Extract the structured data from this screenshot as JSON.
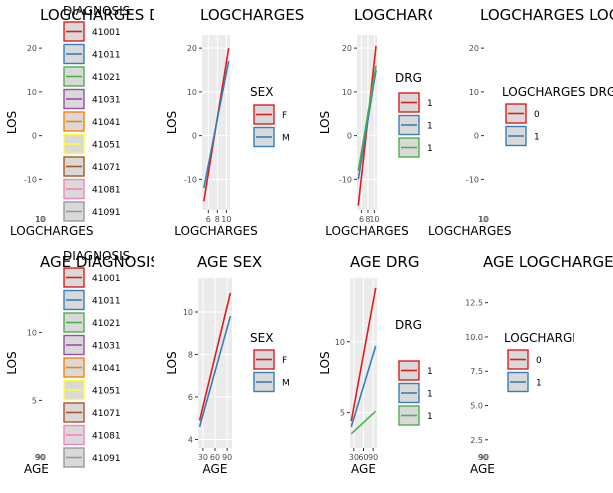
{
  "chart_data": [
    {
      "type": "line",
      "title": "LOGCHARGES DIAGNOSIS",
      "xlabel": "LOGCHARGES",
      "ylabel": "LOS",
      "xticks": [
        "10"
      ],
      "yticks": [
        -10,
        0,
        10,
        20
      ],
      "ylim": [
        -17,
        23
      ],
      "legend": {
        "title": "DIAGNOSIS",
        "entries": [
          "41001",
          "41011",
          "41021",
          "41031",
          "41041",
          "41051",
          "41071",
          "41081",
          "41091"
        ]
      },
      "series": []
    },
    {
      "type": "line",
      "title": "LOGCHARGES SEX",
      "xlabel": "LOGCHARGES",
      "ylabel": "LOS",
      "xticks": [
        "6",
        "8",
        "10"
      ],
      "yticks": [
        -10,
        0,
        10,
        20
      ],
      "ylim": [
        -17,
        23
      ],
      "xlim": [
        4.6,
        10.8
      ],
      "legend": {
        "title": "SEX",
        "entries": [
          "F",
          "M"
        ]
      },
      "series": [
        {
          "name": "F",
          "color": "#e41a1c",
          "points": [
            [
              5.0,
              -15
            ],
            [
              10.5,
              20
            ]
          ]
        },
        {
          "name": "M",
          "color": "#377eb8",
          "points": [
            [
              5.0,
              -12
            ],
            [
              10.5,
              17
            ]
          ]
        }
      ]
    },
    {
      "type": "line",
      "title": "LOGCHARGES DRG",
      "xlabel": "LOGCHARGES",
      "ylabel": "LOS",
      "xticks": [
        "6",
        "8",
        "10"
      ],
      "yticks": [
        -10,
        0,
        10,
        20
      ],
      "ylim": [
        -17,
        23
      ],
      "xlim": [
        4.6,
        10.8
      ],
      "legend": {
        "title": "DRG",
        "entries": [
          "1",
          "1",
          "1"
        ]
      },
      "series": [
        {
          "name": "1",
          "color": "#e41a1c",
          "points": [
            [
              5.0,
              -16
            ],
            [
              10.5,
              20.5
            ]
          ]
        },
        {
          "name": "1",
          "color": "#377eb8",
          "points": [
            [
              5.0,
              -10
            ],
            [
              10.5,
              15
            ]
          ]
        },
        {
          "name": "1",
          "color": "#4daf4a",
          "points": [
            [
              5.0,
              -8
            ],
            [
              10.5,
              16
            ]
          ]
        }
      ]
    },
    {
      "type": "line",
      "title": "LOGCHARGES LOGCHARGES DRG",
      "xlabel": "LOGCHARGES",
      "ylabel": "LOS",
      "xticks": [
        "10"
      ],
      "yticks": [
        -10,
        0,
        10,
        20
      ],
      "ylim": [
        -17,
        23
      ],
      "legend": {
        "title": "LOGCHARGES DRG",
        "entries": [
          "0",
          "1"
        ]
      },
      "series": []
    },
    {
      "type": "line",
      "title": "AGE DIAGNOSIS",
      "xlabel": "AGE",
      "ylabel": "LOS",
      "xticks": [
        "90"
      ],
      "yticks": [
        5,
        10
      ],
      "ylim": [
        1.5,
        14
      ],
      "legend": {
        "title": "DIAGNOSIS",
        "entries": [
          "41001",
          "41011",
          "41021",
          "41031",
          "41041",
          "41051",
          "41071",
          "41081",
          "41091"
        ]
      },
      "series": []
    },
    {
      "type": "line",
      "title": "AGE SEX",
      "xlabel": "AGE",
      "ylabel": "LOS",
      "xticks": [
        "30",
        "60",
        "90"
      ],
      "yticks": [
        4,
        6,
        8,
        10
      ],
      "ylim": [
        3.6,
        11.6
      ],
      "xlim": [
        18,
        102
      ],
      "legend": {
        "title": "SEX",
        "entries": [
          "F",
          "M"
        ]
      },
      "series": [
        {
          "name": "F",
          "color": "#e41a1c",
          "points": [
            [
              22,
              4.9
            ],
            [
              98,
              10.9
            ]
          ]
        },
        {
          "name": "M",
          "color": "#377eb8",
          "points": [
            [
              22,
              4.6
            ],
            [
              98,
              9.8
            ]
          ]
        }
      ]
    },
    {
      "type": "line",
      "title": "AGE DRG",
      "xlabel": "AGE",
      "ylabel": "LOS",
      "xticks": [
        "30",
        "60",
        "90"
      ],
      "yticks": [
        5,
        10
      ],
      "ylim": [
        2.5,
        14.5
      ],
      "xlim": [
        18,
        102
      ],
      "legend": {
        "title": "DRG",
        "entries": [
          "1",
          "1",
          "1"
        ]
      },
      "series": [
        {
          "name": "1",
          "color": "#e41a1c",
          "points": [
            [
              22,
              4.4
            ],
            [
              98,
              13.8
            ]
          ]
        },
        {
          "name": "1",
          "color": "#377eb8",
          "points": [
            [
              22,
              4.0
            ],
            [
              98,
              9.7
            ]
          ]
        },
        {
          "name": "1",
          "color": "#4daf4a",
          "points": [
            [
              22,
              3.5
            ],
            [
              98,
              5.1
            ]
          ]
        }
      ]
    },
    {
      "type": "line",
      "title": "AGE LOGCHARGES",
      "xlabel": "AGE",
      "ylabel": "LOS",
      "xticks": [
        "90"
      ],
      "yticks": [
        2.5,
        5.0,
        7.5,
        10.0,
        12.5
      ],
      "ylim": [
        1.9,
        14.3
      ],
      "legend": {
        "title": "LOGCHARGES",
        "entries": [
          "0",
          "1"
        ]
      },
      "series": []
    }
  ],
  "colors": {
    "palette": [
      "#e41a1c",
      "#377eb8",
      "#4daf4a",
      "#984ea3",
      "#ff7f00",
      "#ffff33",
      "#a65628",
      "#f781bf",
      "#999999"
    ]
  }
}
